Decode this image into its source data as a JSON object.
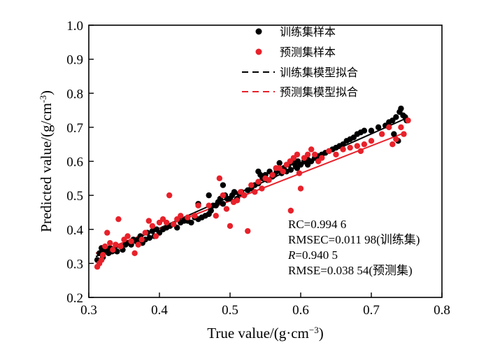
{
  "chart_data": {
    "type": "scatter",
    "xlabel_main": "True value/(g·cm",
    "xlabel_sup": "−3",
    "xlabel_close": ")",
    "ylabel_main": "Predicted value/(g/cm",
    "ylabel_sup": "-3",
    "ylabel_close": ")",
    "xlim": [
      0.3,
      0.8
    ],
    "ylim": [
      0.2,
      1.0
    ],
    "xticks": [
      "0.3",
      "0.4",
      "0.5",
      "0.6",
      "0.7",
      "0.8"
    ],
    "yticks": [
      "0.2",
      "0.3",
      "0.4",
      "0.5",
      "0.6",
      "0.7",
      "0.8",
      "0.9",
      "1.0"
    ],
    "legend_position": "top-right",
    "legend": {
      "train_samples": "训练集样本",
      "test_samples": "预测集样本",
      "train_fit": "训练集模型拟合",
      "test_fit": "预测集模型拟合"
    },
    "annotations": {
      "rc": "RC=0.994 6",
      "rmsec": "RMSEC=0.011 98(训练集)",
      "r_symbol": "R",
      "r_value": "=0.940 5",
      "rmse": "RMSE=0.038 54(预测集)"
    },
    "colors": {
      "train": "#000000",
      "test": "#e8212a"
    },
    "fit_lines": {
      "train": {
        "x": [
          0.31,
          0.75
        ],
        "y": [
          0.32,
          0.727
        ]
      },
      "test": {
        "x": [
          0.31,
          0.745
        ],
        "y": [
          0.33,
          0.682
        ]
      }
    },
    "series": [
      {
        "name": "训练集样本",
        "points": [
          [
            0.312,
            0.31
          ],
          [
            0.315,
            0.33
          ],
          [
            0.318,
            0.345
          ],
          [
            0.32,
            0.318
          ],
          [
            0.322,
            0.335
          ],
          [
            0.325,
            0.34
          ],
          [
            0.328,
            0.33
          ],
          [
            0.33,
            0.345
          ],
          [
            0.333,
            0.335
          ],
          [
            0.337,
            0.34
          ],
          [
            0.34,
            0.335
          ],
          [
            0.345,
            0.35
          ],
          [
            0.348,
            0.34
          ],
          [
            0.352,
            0.355
          ],
          [
            0.355,
            0.36
          ],
          [
            0.36,
            0.355
          ],
          [
            0.363,
            0.37
          ],
          [
            0.367,
            0.365
          ],
          [
            0.37,
            0.37
          ],
          [
            0.373,
            0.38
          ],
          [
            0.376,
            0.36
          ],
          [
            0.38,
            0.37
          ],
          [
            0.383,
            0.39
          ],
          [
            0.386,
            0.375
          ],
          [
            0.39,
            0.395
          ],
          [
            0.393,
            0.38
          ],
          [
            0.396,
            0.4
          ],
          [
            0.4,
            0.39
          ],
          [
            0.405,
            0.4
          ],
          [
            0.41,
            0.405
          ],
          [
            0.415,
            0.41
          ],
          [
            0.42,
            0.415
          ],
          [
            0.425,
            0.405
          ],
          [
            0.43,
            0.42
          ],
          [
            0.435,
            0.425
          ],
          [
            0.44,
            0.425
          ],
          [
            0.445,
            0.42
          ],
          [
            0.45,
            0.435
          ],
          [
            0.455,
            0.43
          ],
          [
            0.46,
            0.435
          ],
          [
            0.465,
            0.44
          ],
          [
            0.47,
            0.445
          ],
          [
            0.473,
            0.455
          ],
          [
            0.476,
            0.47
          ],
          [
            0.48,
            0.47
          ],
          [
            0.483,
            0.48
          ],
          [
            0.486,
            0.49
          ],
          [
            0.49,
            0.475
          ],
          [
            0.493,
            0.5
          ],
          [
            0.496,
            0.49
          ],
          [
            0.5,
            0.49
          ],
          [
            0.503,
            0.5
          ],
          [
            0.506,
            0.51
          ],
          [
            0.51,
            0.49
          ],
          [
            0.513,
            0.505
          ],
          [
            0.516,
            0.51
          ],
          [
            0.52,
            0.5
          ],
          [
            0.525,
            0.515
          ],
          [
            0.53,
            0.52
          ],
          [
            0.535,
            0.53
          ],
          [
            0.54,
            0.535
          ],
          [
            0.543,
            0.56
          ],
          [
            0.546,
            0.55
          ],
          [
            0.55,
            0.56
          ],
          [
            0.553,
            0.545
          ],
          [
            0.556,
            0.57
          ],
          [
            0.56,
            0.555
          ],
          [
            0.563,
            0.56
          ],
          [
            0.566,
            0.57
          ],
          [
            0.57,
            0.58
          ],
          [
            0.573,
            0.565
          ],
          [
            0.576,
            0.58
          ],
          [
            0.58,
            0.57
          ],
          [
            0.583,
            0.59
          ],
          [
            0.586,
            0.575
          ],
          [
            0.59,
            0.595
          ],
          [
            0.593,
            0.585
          ],
          [
            0.596,
            0.6
          ],
          [
            0.6,
            0.59
          ],
          [
            0.605,
            0.6
          ],
          [
            0.61,
            0.605
          ],
          [
            0.615,
            0.6
          ],
          [
            0.62,
            0.61
          ],
          [
            0.625,
            0.615
          ],
          [
            0.63,
            0.62
          ],
          [
            0.635,
            0.625
          ],
          [
            0.64,
            0.63
          ],
          [
            0.645,
            0.635
          ],
          [
            0.65,
            0.64
          ],
          [
            0.655,
            0.645
          ],
          [
            0.66,
            0.65
          ],
          [
            0.665,
            0.66
          ],
          [
            0.67,
            0.665
          ],
          [
            0.675,
            0.67
          ],
          [
            0.68,
            0.68
          ],
          [
            0.685,
            0.685
          ],
          [
            0.69,
            0.69
          ],
          [
            0.7,
            0.69
          ],
          [
            0.71,
            0.7
          ],
          [
            0.72,
            0.705
          ],
          [
            0.725,
            0.715
          ],
          [
            0.73,
            0.72
          ],
          [
            0.735,
            0.73
          ],
          [
            0.74,
            0.745
          ],
          [
            0.742,
            0.755
          ],
          [
            0.745,
            0.735
          ],
          [
            0.748,
            0.73
          ],
          [
            0.75,
            0.72
          ],
          [
            0.738,
            0.66
          ],
          [
            0.732,
            0.68
          ],
          [
            0.49,
            0.53
          ],
          [
            0.47,
            0.5
          ],
          [
            0.455,
            0.475
          ],
          [
            0.54,
            0.57
          ],
          [
            0.57,
            0.595
          ],
          [
            0.595,
            0.58
          ],
          [
            0.61,
            0.59
          ]
        ]
      },
      {
        "name": "预测集样本",
        "points": [
          [
            0.312,
            0.29
          ],
          [
            0.315,
            0.3
          ],
          [
            0.318,
            0.31
          ],
          [
            0.32,
            0.325
          ],
          [
            0.323,
            0.35
          ],
          [
            0.326,
            0.39
          ],
          [
            0.33,
            0.36
          ],
          [
            0.334,
            0.34
          ],
          [
            0.338,
            0.355
          ],
          [
            0.342,
            0.43
          ],
          [
            0.345,
            0.35
          ],
          [
            0.35,
            0.37
          ],
          [
            0.355,
            0.38
          ],
          [
            0.36,
            0.365
          ],
          [
            0.365,
            0.33
          ],
          [
            0.37,
            0.355
          ],
          [
            0.375,
            0.37
          ],
          [
            0.38,
            0.39
          ],
          [
            0.385,
            0.425
          ],
          [
            0.39,
            0.41
          ],
          [
            0.395,
            0.38
          ],
          [
            0.4,
            0.42
          ],
          [
            0.405,
            0.43
          ],
          [
            0.41,
            0.42
          ],
          [
            0.414,
            0.5
          ],
          [
            0.42,
            0.415
          ],
          [
            0.425,
            0.43
          ],
          [
            0.43,
            0.44
          ],
          [
            0.44,
            0.435
          ],
          [
            0.45,
            0.44
          ],
          [
            0.455,
            0.47
          ],
          [
            0.47,
            0.47
          ],
          [
            0.48,
            0.44
          ],
          [
            0.485,
            0.55
          ],
          [
            0.49,
            0.5
          ],
          [
            0.495,
            0.46
          ],
          [
            0.5,
            0.41
          ],
          [
            0.505,
            0.48
          ],
          [
            0.51,
            0.485
          ],
          [
            0.515,
            0.51
          ],
          [
            0.52,
            0.5
          ],
          [
            0.525,
            0.395
          ],
          [
            0.53,
            0.53
          ],
          [
            0.535,
            0.51
          ],
          [
            0.54,
            0.54
          ],
          [
            0.545,
            0.52
          ],
          [
            0.55,
            0.55
          ],
          [
            0.555,
            0.545
          ],
          [
            0.56,
            0.56
          ],
          [
            0.565,
            0.58
          ],
          [
            0.57,
            0.58
          ],
          [
            0.575,
            0.57
          ],
          [
            0.58,
            0.59
          ],
          [
            0.585,
            0.6
          ],
          [
            0.586,
            0.455
          ],
          [
            0.59,
            0.61
          ],
          [
            0.595,
            0.62
          ],
          [
            0.598,
            0.565
          ],
          [
            0.6,
            0.52
          ],
          [
            0.605,
            0.61
          ],
          [
            0.61,
            0.62
          ],
          [
            0.615,
            0.635
          ],
          [
            0.62,
            0.62
          ],
          [
            0.625,
            0.6
          ],
          [
            0.63,
            0.61
          ],
          [
            0.64,
            0.63
          ],
          [
            0.65,
            0.62
          ],
          [
            0.66,
            0.635
          ],
          [
            0.67,
            0.64
          ],
          [
            0.68,
            0.645
          ],
          [
            0.685,
            0.63
          ],
          [
            0.69,
            0.65
          ],
          [
            0.7,
            0.66
          ],
          [
            0.715,
            0.68
          ],
          [
            0.725,
            0.7
          ],
          [
            0.73,
            0.65
          ],
          [
            0.735,
            0.665
          ],
          [
            0.742,
            0.7
          ],
          [
            0.746,
            0.68
          ],
          [
            0.752,
            0.72
          ]
        ]
      }
    ]
  }
}
